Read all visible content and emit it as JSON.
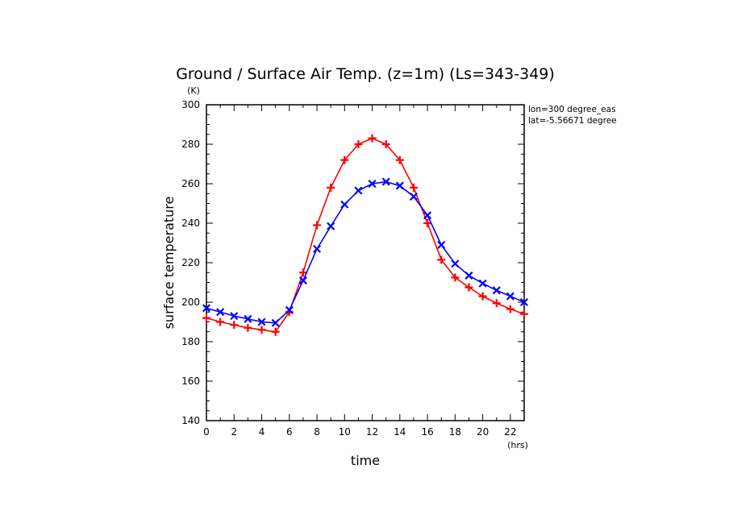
{
  "chart_data": {
    "type": "line",
    "title": "Ground / Surface Air Temp. (z=1m) (Ls=343-349)",
    "xlabel": "time",
    "ylabel": "surface temperature",
    "x_unit": "(hrs)",
    "y_unit": "(K)",
    "xlim": [
      0,
      23
    ],
    "ylim": [
      140,
      300
    ],
    "x_ticks": [
      0,
      2,
      4,
      6,
      8,
      10,
      12,
      14,
      16,
      18,
      20,
      22
    ],
    "y_ticks": [
      140,
      160,
      180,
      200,
      220,
      240,
      260,
      280,
      300
    ],
    "annotations": [
      "lon=300 degree_eas",
      "lat=-5.56671 degree"
    ],
    "grid": false,
    "x": [
      0,
      1,
      2,
      3,
      4,
      5,
      6,
      7,
      8,
      9,
      10,
      11,
      12,
      13,
      14,
      15,
      16,
      17,
      18,
      19,
      20,
      21,
      22,
      23
    ],
    "series": [
      {
        "color": "#ff0000",
        "marker": "plus",
        "values": [
          192,
          190,
          188.5,
          187,
          186,
          185,
          195,
          215,
          239,
          258,
          272,
          280,
          283,
          280,
          272,
          258,
          240,
          221.5,
          212.5,
          207.5,
          203,
          199.5,
          196.5,
          194
        ]
      },
      {
        "color": "#0000ff",
        "marker": "x",
        "values": [
          197,
          195,
          193,
          191.5,
          190,
          189.5,
          196,
          211,
          227,
          238.5,
          249.5,
          256.5,
          260,
          261,
          259,
          253.5,
          244,
          229,
          219.5,
          213.5,
          209.5,
          206,
          203,
          200
        ]
      }
    ]
  }
}
